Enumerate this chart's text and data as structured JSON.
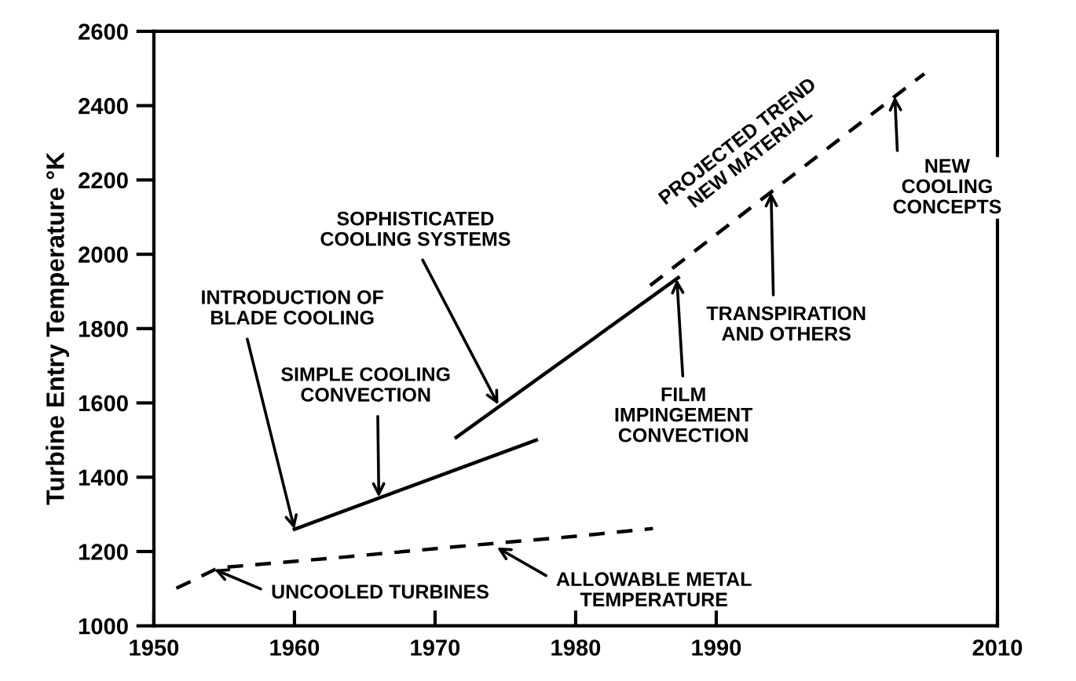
{
  "chart_data": {
    "type": "line",
    "ylabel": "Turbine Entry Temperature °K",
    "xlim": [
      1950,
      2010
    ],
    "xticks": [
      1950,
      1960,
      1970,
      1980,
      1990,
      2010
    ],
    "ylim": [
      1000,
      2600
    ],
    "yticks": [
      1000,
      1200,
      1400,
      1600,
      1800,
      2000,
      2200,
      2400,
      2600
    ],
    "grid": false,
    "legend": false,
    "marker": "none",
    "series": [
      {
        "color": "#000000",
        "line_style": "solid",
        "x": [
          1960,
          1977.2
        ],
        "values": [
          1260,
          1500
        ]
      },
      {
        "color": "#000000",
        "line_style": "solid",
        "x": [
          1971.5,
          1987.3
        ],
        "values": [
          1507,
          1937
        ]
      },
      {
        "color": "#000000",
        "line_style": "dashed",
        "x": [
          1985.3,
          2004.8
        ],
        "values": [
          1916,
          2486
        ]
      },
      {
        "color": "#000000",
        "line_style": "dashed",
        "x": [
          1951.6,
          1954.6,
          1963.8,
          1972.1,
          1980,
          1985.5
        ],
        "values": [
          1101,
          1156,
          1186,
          1215,
          1241,
          1262
        ]
      }
    ],
    "annotations": [
      {
        "text": "INTRODUCTION OF\nBLADE COOLING",
        "x": 1960,
        "y": 1260
      },
      {
        "text": "SIMPLE COOLING\nCONVECTION",
        "x": 1966,
        "y": 1346
      },
      {
        "text": "SOPHISTICATED\nCOOLING SYSTEMS",
        "x": 1974.5,
        "y": 1595
      },
      {
        "text": "FILM\nIMPINGEMENT\nCONVECTION",
        "x": 1987.2,
        "y": 1933
      },
      {
        "text": "TRANSPIRATION\nAND OTHERS",
        "x": 1993.9,
        "y": 2167
      },
      {
        "text": "NEW\nCOOLING\nCONCEPTS",
        "x": 2002.7,
        "y": 2425
      },
      {
        "text": "UNCOOLED TURBINES",
        "x": 1954.3,
        "y": 1152
      },
      {
        "text": "ALLOWABLE METAL\nTEMPERATURE",
        "x": 1974.4,
        "y": 1211
      },
      "PROJECTED TREND\nNEW MATERIAL"
    ]
  }
}
